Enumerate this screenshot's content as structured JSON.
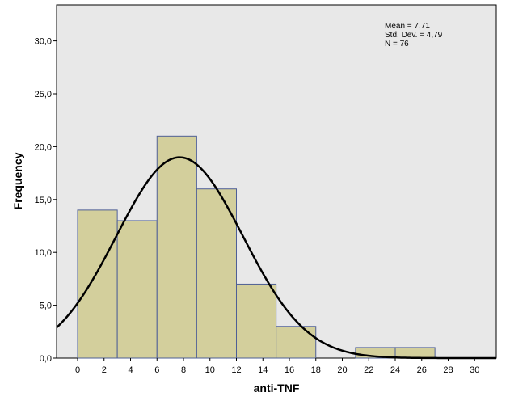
{
  "chart_data": {
    "type": "bar",
    "subtype": "histogram",
    "xlabel": "anti-TNF",
    "ylabel": "Frequency",
    "x_ticks": [
      "0",
      "2",
      "4",
      "6",
      "8",
      "10",
      "12",
      "14",
      "16",
      "18",
      "20",
      "22",
      "24",
      "26",
      "28",
      "30"
    ],
    "y_ticks": [
      "0,0",
      "5,0",
      "10,0",
      "15,0",
      "20,0",
      "25,0",
      "30,0"
    ],
    "xlim": [
      -2,
      31
    ],
    "ylim": [
      0,
      33
    ],
    "bins": [
      {
        "start": 0,
        "end": 3,
        "count": 14
      },
      {
        "start": 3,
        "end": 6,
        "count": 13
      },
      {
        "start": 6,
        "end": 9,
        "count": 21
      },
      {
        "start": 9,
        "end": 12,
        "count": 16
      },
      {
        "start": 12,
        "end": 15,
        "count": 7
      },
      {
        "start": 15,
        "end": 18,
        "count": 3
      },
      {
        "start": 18,
        "end": 21,
        "count": 0
      },
      {
        "start": 21,
        "end": 24,
        "count": 1
      },
      {
        "start": 24,
        "end": 27,
        "count": 1
      }
    ],
    "normal_curve": {
      "mean": 7.71,
      "std": 4.79,
      "n": 76,
      "bin_width": 3
    },
    "stats": [
      "Mean = 7,71",
      "Std. Dev. = 4,79",
      "N = 76"
    ],
    "colors": {
      "plot_bg": "#e8e8e8",
      "bar_fill": "#d3cf9c",
      "bar_stroke": "#4e5f96",
      "curve": "#000000"
    }
  }
}
